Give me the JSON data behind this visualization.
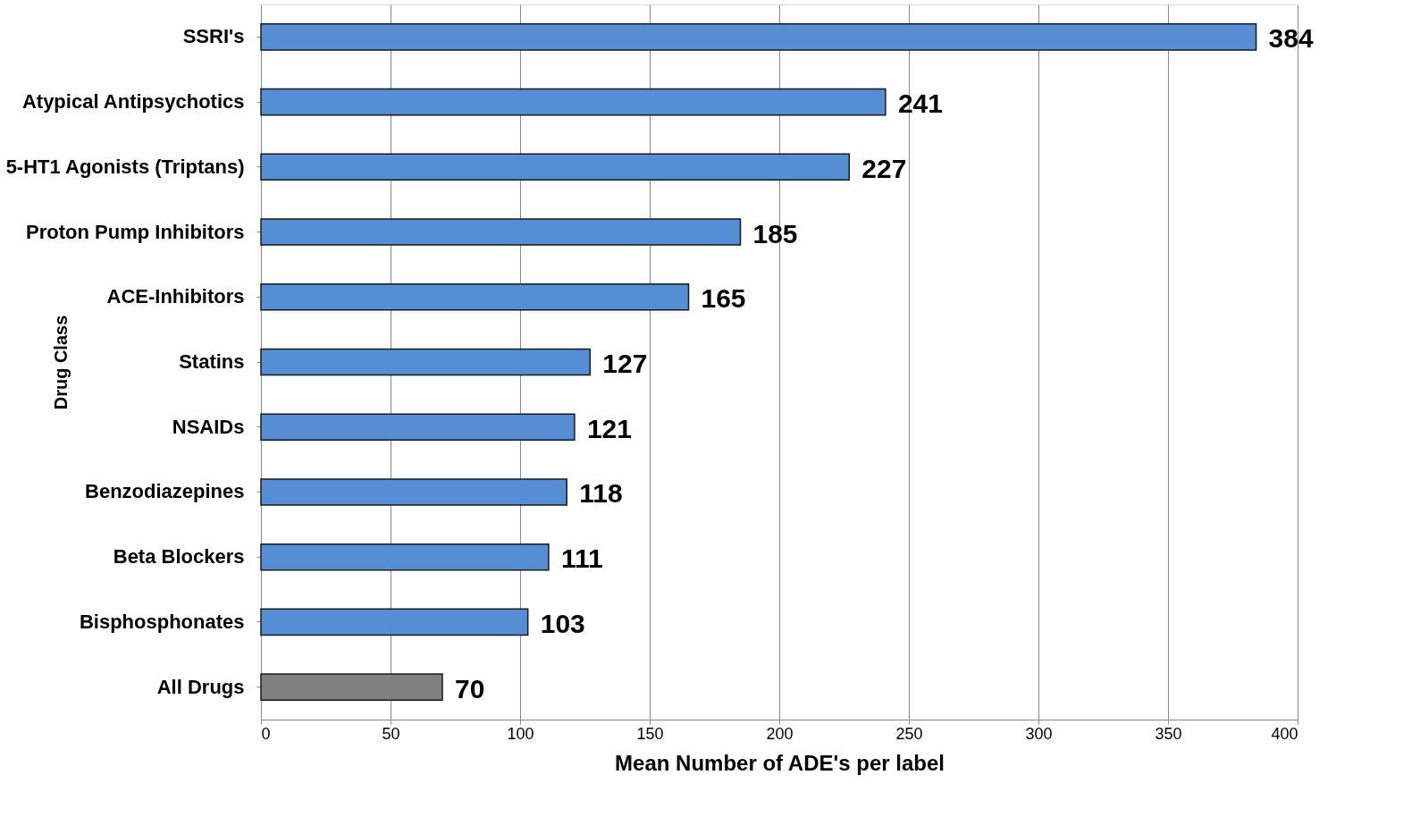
{
  "chart_data": {
    "type": "bar",
    "orientation": "horizontal",
    "xlabel": "Mean Number of ADE's per label",
    "ylabel": "Drug Class",
    "categories": [
      "SSRI's",
      "Atypical Antipsychotics",
      "5-HT1 Agonists (Triptans)",
      "Proton Pump Inhibitors",
      "ACE-Inhibitors",
      "Statins",
      "NSAIDs",
      "Benzodiazepines",
      "Beta Blockers",
      "Bisphosphonates",
      "All Drugs"
    ],
    "values": [
      384,
      241,
      227,
      185,
      165,
      127,
      121,
      118,
      111,
      103,
      70
    ],
    "colors": [
      "#558ed5",
      "#558ed5",
      "#558ed5",
      "#558ed5",
      "#558ed5",
      "#558ed5",
      "#558ed5",
      "#558ed5",
      "#558ed5",
      "#558ed5",
      "#808080"
    ],
    "xlim": [
      0,
      400
    ],
    "xticks": [
      0,
      50,
      100,
      150,
      200,
      250,
      300,
      350,
      400
    ],
    "grid": "x",
    "data_labels": true
  }
}
